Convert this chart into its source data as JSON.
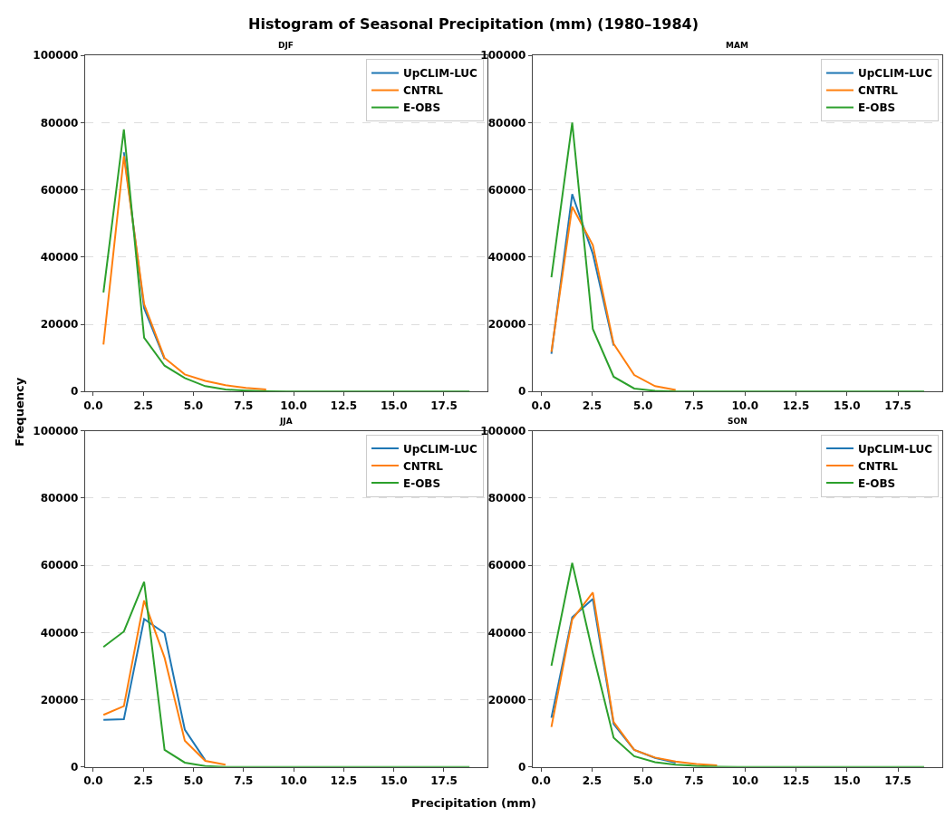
{
  "chart_data": [
    {
      "type": "line",
      "title": "Histogram of Seasonal Precipitation (mm) (1980–1984)",
      "subtitle": "DJF",
      "ylabel": "Frequency",
      "x": [
        0.51,
        1.53,
        2.54,
        3.56,
        4.57,
        5.59,
        6.6,
        7.62,
        8.63,
        9.65,
        10.66,
        11.68,
        12.69,
        13.71,
        14.72,
        15.74,
        16.75,
        17.77,
        18.78
      ],
      "series": [
        {
          "name": "UpCLIM-LUC",
          "color": "#1f77b4",
          "values": [
            null,
            71200,
            24800,
            9700,
            null,
            null,
            null,
            null,
            null,
            null,
            null,
            null,
            null,
            null,
            null,
            null,
            null,
            null,
            null
          ]
        },
        {
          "name": "CNTRL",
          "color": "#ff7f0e",
          "values": [
            14000,
            70000,
            26000,
            10000,
            5100,
            3200,
            1900,
            1100,
            600,
            null,
            null,
            null,
            null,
            null,
            null,
            null,
            null,
            null,
            null
          ]
        },
        {
          "name": "E-OBS",
          "color": "#2ca02c",
          "values": [
            29500,
            78000,
            16000,
            7700,
            4000,
            1600,
            600,
            300,
            100,
            0,
            0,
            0,
            0,
            0,
            0,
            0,
            0,
            0,
            0
          ]
        }
      ],
      "xlim": [
        -0.41,
        19.67
      ],
      "ylim": [
        0,
        100000
      ],
      "xticks": [
        {
          "value": 0,
          "label": "0.0"
        },
        {
          "value": 2.5,
          "label": "2.5"
        },
        {
          "value": 5,
          "label": "5.0"
        },
        {
          "value": 7.5,
          "label": "7.5"
        },
        {
          "value": 10,
          "label": "10.0"
        },
        {
          "value": 12.5,
          "label": "12.5"
        },
        {
          "value": 15,
          "label": "15.0"
        },
        {
          "value": 17.5,
          "label": "17.5"
        }
      ],
      "yticks": [
        0,
        20000,
        40000,
        60000,
        80000,
        100000
      ],
      "grid": "y",
      "legend": "top right",
      "line_style": "solid",
      "marker": "none"
    },
    {
      "type": "line",
      "subtitle": "MAM",
      "x": [
        0.51,
        1.53,
        2.54,
        3.56,
        4.57,
        5.59,
        6.6,
        7.62,
        8.63,
        9.65,
        10.66,
        11.68,
        12.69,
        13.71,
        14.72,
        15.74,
        16.75,
        17.77,
        18.78
      ],
      "series": [
        {
          "name": "UpCLIM-LUC",
          "color": "#1f77b4",
          "values": [
            11200,
            58700,
            41000,
            13700,
            null,
            null,
            null,
            null,
            null,
            null,
            null,
            null,
            null,
            null,
            null,
            null,
            null,
            null,
            null
          ]
        },
        {
          "name": "CNTRL",
          "color": "#ff7f0e",
          "values": [
            11800,
            55000,
            43600,
            14200,
            4900,
            1600,
            500,
            null,
            null,
            null,
            null,
            null,
            null,
            null,
            null,
            null,
            null,
            null,
            null
          ]
        },
        {
          "name": "E-OBS",
          "color": "#2ca02c",
          "values": [
            34000,
            80000,
            18600,
            4400,
            900,
            200,
            0,
            0,
            0,
            0,
            0,
            0,
            0,
            0,
            0,
            0,
            0,
            0,
            0
          ]
        }
      ],
      "xlim": [
        -0.41,
        19.67
      ],
      "ylim": [
        0,
        100000
      ],
      "xticks": [
        {
          "value": 0,
          "label": "0.0"
        },
        {
          "value": 2.5,
          "label": "2.5"
        },
        {
          "value": 5,
          "label": "5.0"
        },
        {
          "value": 7.5,
          "label": "7.5"
        },
        {
          "value": 10,
          "label": "10.0"
        },
        {
          "value": 12.5,
          "label": "12.5"
        },
        {
          "value": 15,
          "label": "15.0"
        },
        {
          "value": 17.5,
          "label": "17.5"
        }
      ],
      "yticks": [
        0,
        20000,
        40000,
        60000,
        80000,
        100000
      ],
      "grid": "y",
      "legend": "top right",
      "line_style": "solid",
      "marker": "none"
    },
    {
      "type": "line",
      "subtitle": "JJA",
      "xlabel": "Precipitation (mm)",
      "x": [
        0.51,
        1.53,
        2.54,
        3.56,
        4.57,
        5.59,
        6.6,
        7.62,
        8.63,
        9.65,
        10.66,
        11.68,
        12.69,
        13.71,
        14.72,
        15.74,
        16.75,
        17.77,
        18.78
      ],
      "series": [
        {
          "name": "UpCLIM-LUC",
          "color": "#1f77b4",
          "values": [
            14000,
            14200,
            44000,
            39800,
            11100,
            2000,
            null,
            null,
            null,
            null,
            null,
            null,
            null,
            null,
            null,
            null,
            null,
            null,
            null
          ]
        },
        {
          "name": "CNTRL",
          "color": "#ff7f0e",
          "values": [
            15500,
            18100,
            49500,
            32500,
            7800,
            1800,
            700,
            null,
            null,
            null,
            null,
            null,
            null,
            null,
            null,
            null,
            null,
            null,
            null
          ]
        },
        {
          "name": "E-OBS",
          "color": "#2ca02c",
          "values": [
            35700,
            40300,
            55100,
            5100,
            1300,
            300,
            0,
            0,
            0,
            0,
            0,
            0,
            0,
            0,
            0,
            0,
            0,
            0,
            0
          ]
        }
      ],
      "xlim": [
        -0.41,
        19.67
      ],
      "ylim": [
        0,
        100000
      ],
      "xticks": [
        {
          "value": 0,
          "label": "0.0"
        },
        {
          "value": 2.5,
          "label": "2.5"
        },
        {
          "value": 5,
          "label": "5.0"
        },
        {
          "value": 7.5,
          "label": "7.5"
        },
        {
          "value": 10,
          "label": "10.0"
        },
        {
          "value": 12.5,
          "label": "12.5"
        },
        {
          "value": 15,
          "label": "15.0"
        },
        {
          "value": 17.5,
          "label": "17.5"
        }
      ],
      "yticks": [
        0,
        20000,
        40000,
        60000,
        80000,
        100000
      ],
      "grid": "y",
      "legend": "top right",
      "line_style": "solid",
      "marker": "none"
    },
    {
      "type": "line",
      "subtitle": "SON",
      "x": [
        0.51,
        1.53,
        2.54,
        3.56,
        4.57,
        5.59,
        6.6,
        7.62,
        8.63,
        9.65,
        10.66,
        11.68,
        12.69,
        13.71,
        14.72,
        15.74,
        16.75,
        17.77,
        18.78
      ],
      "series": [
        {
          "name": "UpCLIM-LUC",
          "color": "#1f77b4",
          "values": [
            14600,
            44500,
            50000,
            12800,
            5100,
            2700,
            1300,
            null,
            null,
            null,
            null,
            null,
            null,
            null,
            null,
            null,
            null,
            null,
            null
          ]
        },
        {
          "name": "CNTRL",
          "color": "#ff7f0e",
          "values": [
            11900,
            43900,
            51900,
            13400,
            5100,
            2800,
            1600,
            900,
            500,
            null,
            null,
            null,
            null,
            null,
            null,
            null,
            null,
            null,
            null
          ]
        },
        {
          "name": "E-OBS",
          "color": "#2ca02c",
          "values": [
            30100,
            60700,
            33900,
            8700,
            3200,
            1400,
            700,
            300,
            100,
            0,
            0,
            0,
            0,
            0,
            0,
            0,
            0,
            0,
            0
          ]
        }
      ],
      "xlim": [
        -0.41,
        19.67
      ],
      "ylim": [
        0,
        100000
      ],
      "xticks": [
        {
          "value": 0,
          "label": "0.0"
        },
        {
          "value": 2.5,
          "label": "2.5"
        },
        {
          "value": 5,
          "label": "5.0"
        },
        {
          "value": 7.5,
          "label": "7.5"
        },
        {
          "value": 10,
          "label": "10.0"
        },
        {
          "value": 12.5,
          "label": "12.5"
        },
        {
          "value": 15,
          "label": "15.0"
        },
        {
          "value": 17.5,
          "label": "17.5"
        }
      ],
      "yticks": [
        0,
        20000,
        40000,
        60000,
        80000,
        100000
      ],
      "grid": "y",
      "legend": "top right",
      "line_style": "solid",
      "marker": "none"
    }
  ]
}
